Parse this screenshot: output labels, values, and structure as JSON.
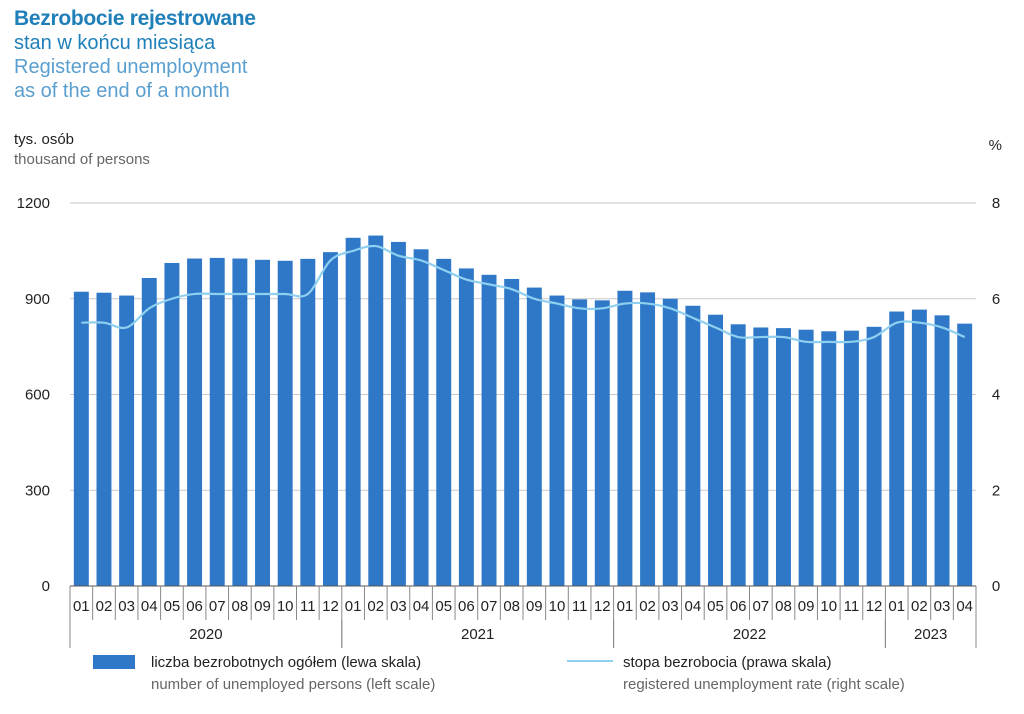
{
  "title": {
    "pl_main": "Bezrobocie rejestrowane",
    "pl_sub": "stan w końcu miesiąca",
    "en_main": "Registered unemployment",
    "en_sub": "as of the end of a month"
  },
  "units": {
    "left_pl": "tys. osób",
    "left_en": "thousand of persons",
    "right": "%"
  },
  "legend": {
    "bar_pl": "liczba bezrobotnych ogółem (lewa skala)",
    "bar_en": "number of unemployed persons (left scale)",
    "line_pl": "stopa bezrobocia (prawa skala)",
    "line_en": "registered unemployment rate (right scale)"
  },
  "colors": {
    "bar": "#2f78c8",
    "line": "#8fd0f0",
    "title": "#1f7fb8"
  },
  "chart_data": {
    "type": "bar",
    "grid": true,
    "categories": [
      "01",
      "02",
      "03",
      "04",
      "05",
      "06",
      "07",
      "08",
      "09",
      "10",
      "11",
      "12",
      "01",
      "02",
      "03",
      "04",
      "05",
      "06",
      "07",
      "08",
      "09",
      "10",
      "11",
      "12",
      "01",
      "02",
      "03",
      "04",
      "05",
      "06",
      "07",
      "08",
      "09",
      "10",
      "11",
      "12",
      "01",
      "02",
      "03",
      "04"
    ],
    "years": [
      {
        "label": "2020",
        "start": 0,
        "count": 12
      },
      {
        "label": "2021",
        "start": 12,
        "count": 12
      },
      {
        "label": "2022",
        "start": 24,
        "count": 12
      },
      {
        "label": "2023",
        "start": 36,
        "count": 4
      }
    ],
    "left_axis": {
      "ylim": [
        0,
        1200
      ],
      "ticks": [
        0,
        300,
        600,
        900,
        1200
      ]
    },
    "right_axis": {
      "ylim": [
        0,
        8
      ],
      "ticks": [
        0,
        2,
        4,
        6,
        8
      ]
    },
    "series": [
      {
        "name": "liczba bezrobotnych ogółem (lewa skala)",
        "kind": "bar",
        "axis": "left",
        "values": [
          922,
          919,
          910,
          965,
          1012,
          1026,
          1028,
          1026,
          1022,
          1019,
          1025,
          1046,
          1091,
          1098,
          1078,
          1055,
          1025,
          995,
          975,
          962,
          935,
          910,
          898,
          895,
          925,
          920,
          900,
          878,
          850,
          820,
          810,
          808,
          803,
          798,
          800,
          812,
          860,
          866,
          848,
          822
        ]
      },
      {
        "name": "stopa bezrobocia (prawa skala)",
        "kind": "line",
        "axis": "right",
        "values": [
          5.5,
          5.5,
          5.4,
          5.8,
          6.0,
          6.1,
          6.1,
          6.1,
          6.1,
          6.1,
          6.1,
          6.8,
          7.0,
          7.1,
          6.9,
          6.8,
          6.6,
          6.4,
          6.3,
          6.2,
          6.0,
          5.9,
          5.8,
          5.8,
          5.9,
          5.9,
          5.8,
          5.6,
          5.4,
          5.2,
          5.2,
          5.2,
          5.1,
          5.1,
          5.1,
          5.2,
          5.5,
          5.5,
          5.4,
          5.2
        ]
      }
    ]
  }
}
